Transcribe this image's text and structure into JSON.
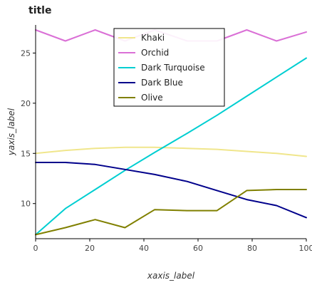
{
  "chart_data": {
    "type": "line",
    "title": "title",
    "xlabel": "xaxis_label",
    "ylabel": "yaxis_label",
    "xlim": [
      0,
      100
    ],
    "ylim": [
      6.5,
      27.8
    ],
    "x_ticks": [
      0,
      20,
      40,
      60,
      80,
      100
    ],
    "y_ticks": [
      10,
      15,
      20,
      25
    ],
    "grid": false,
    "legend_position": "top-center",
    "x": [
      0,
      11,
      22,
      33,
      44,
      56,
      67,
      78,
      89,
      100
    ],
    "series": [
      {
        "name": "Khaki",
        "color": "#f0e68c",
        "values": [
          15.0,
          15.3,
          15.5,
          15.6,
          15.6,
          15.5,
          15.4,
          15.2,
          15.0,
          14.7
        ]
      },
      {
        "name": "Orchid",
        "color": "#da70d6",
        "values": [
          27.3,
          26.2,
          27.3,
          26.2,
          27.3,
          26.2,
          26.2,
          27.3,
          26.2,
          27.1
        ]
      },
      {
        "name": "Dark Turquoise",
        "color": "#00ced1",
        "values": [
          6.9,
          9.5,
          11.4,
          13.3,
          15.1,
          17.0,
          18.8,
          20.7,
          22.6,
          24.5
        ]
      },
      {
        "name": "Dark Blue",
        "color": "#00008b",
        "values": [
          14.1,
          14.1,
          13.9,
          13.4,
          12.9,
          12.2,
          11.3,
          10.4,
          9.8,
          8.6
        ]
      },
      {
        "name": "Olive",
        "color": "#808000",
        "values": [
          6.9,
          7.6,
          8.4,
          7.6,
          9.4,
          9.3,
          9.3,
          11.3,
          11.4,
          11.4
        ]
      }
    ]
  }
}
